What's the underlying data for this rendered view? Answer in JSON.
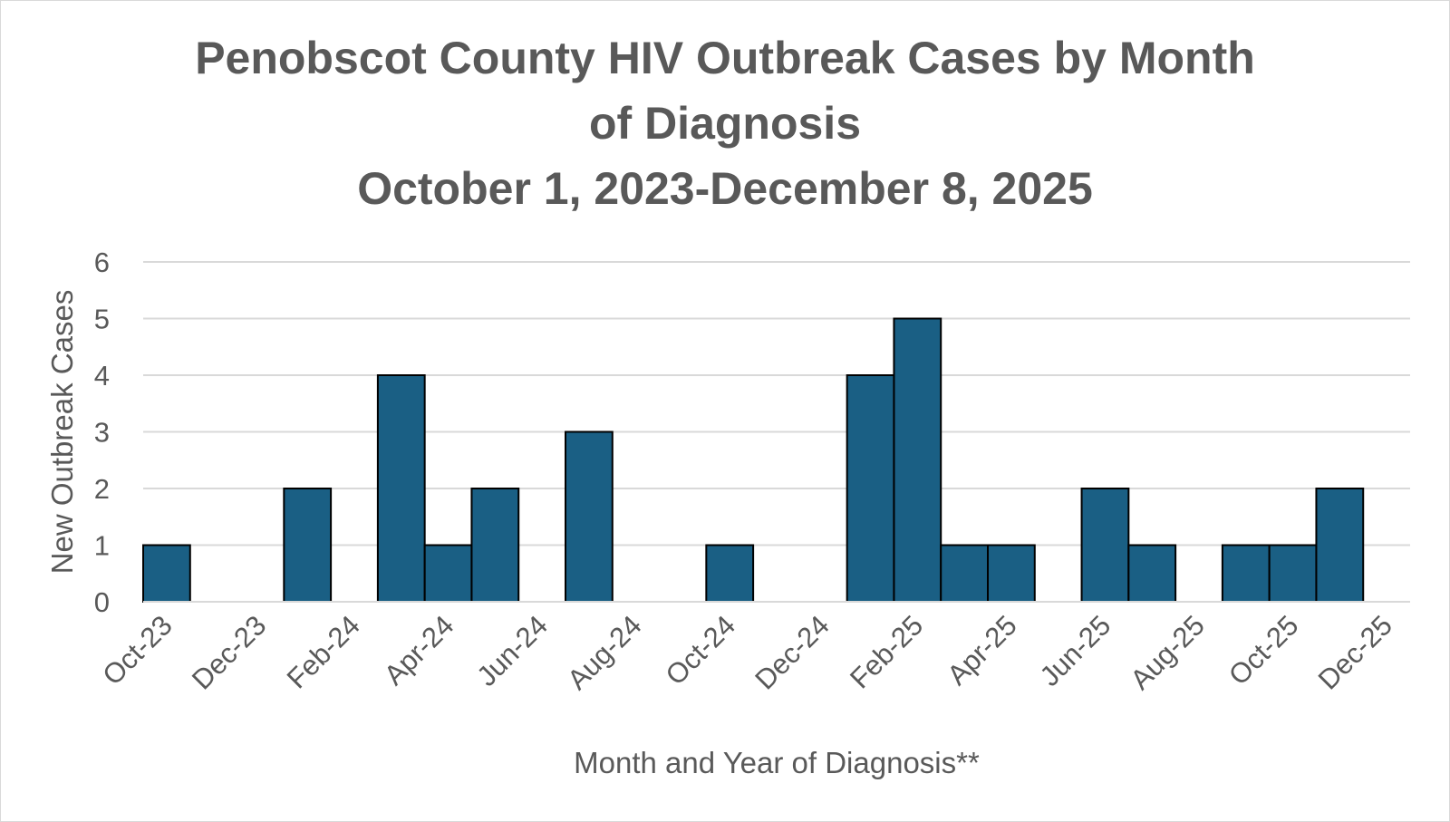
{
  "chart_data": {
    "type": "bar",
    "title_lines": [
      "Penobscot County HIV Outbreak Cases by Month",
      "of Diagnosis",
      "October 1, 2023-December 8, 2025"
    ],
    "xlabel": "Month and Year of Diagnosis**",
    "ylabel": "New Outbreak Cases",
    "ylim": [
      0,
      6
    ],
    "y_ticks": [
      0,
      1,
      2,
      3,
      4,
      5,
      6
    ],
    "grid": true,
    "legend": "none",
    "bar_color": "#1a5f84",
    "bar_outline": "#000000",
    "categories": [
      "Oct-23",
      "Nov-23",
      "Dec-23",
      "Jan-24",
      "Feb-24",
      "Mar-24",
      "Apr-24",
      "May-24",
      "Jun-24",
      "Jul-24",
      "Aug-24",
      "Sep-24",
      "Oct-24",
      "Nov-24",
      "Dec-24",
      "Jan-25",
      "Feb-25",
      "Mar-25",
      "Apr-25",
      "May-25",
      "Jun-25",
      "Jul-25",
      "Aug-25",
      "Sep-25",
      "Oct-25",
      "Nov-25",
      "Dec-25"
    ],
    "x_tick_labels": [
      "Oct-23",
      "Dec-23",
      "Feb-24",
      "Apr-24",
      "Jun-24",
      "Aug-24",
      "Oct-24",
      "Dec-24",
      "Feb-25",
      "Apr-25",
      "Jun-25",
      "Aug-25",
      "Oct-25",
      "Dec-25"
    ],
    "values": [
      1,
      0,
      0,
      2,
      0,
      4,
      1,
      2,
      0,
      3,
      0,
      0,
      1,
      0,
      0,
      4,
      5,
      1,
      1,
      0,
      2,
      1,
      0,
      1,
      1,
      2,
      0
    ]
  }
}
